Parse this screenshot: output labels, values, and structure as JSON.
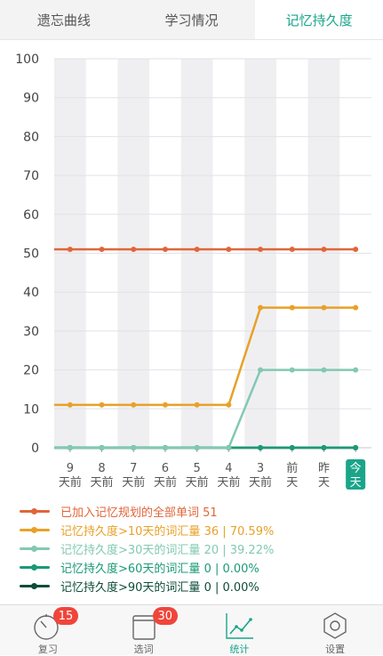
{
  "tabs": [
    {
      "label": "遗忘曲线",
      "active": false
    },
    {
      "label": "学习情况",
      "active": false
    },
    {
      "label": "记忆持久度",
      "active": true
    }
  ],
  "chart_data": {
    "type": "line",
    "ylim": [
      0,
      100
    ],
    "yticks": [
      0,
      10,
      20,
      30,
      40,
      50,
      60,
      70,
      80,
      90,
      100
    ],
    "categories": [
      {
        "line1": "9",
        "line2": "天前"
      },
      {
        "line1": "8",
        "line2": "天前"
      },
      {
        "line1": "7",
        "line2": "天前"
      },
      {
        "line1": "6",
        "line2": "天前"
      },
      {
        "line1": "5",
        "line2": "天前"
      },
      {
        "line1": "4",
        "line2": "天前"
      },
      {
        "line1": "3",
        "line2": "天前"
      },
      {
        "line1": "前",
        "line2": "天"
      },
      {
        "line1": "昨",
        "line2": "天"
      },
      {
        "line1": "今",
        "line2": "天",
        "highlight": true
      }
    ],
    "grid": true,
    "series": [
      {
        "name": "已加入记忆规划的全部单词 51",
        "color": "#e0663a",
        "values": [
          51,
          51,
          51,
          51,
          51,
          51,
          51,
          51,
          51,
          51
        ]
      },
      {
        "name": "记忆持久度>10天的词汇量 36 | 70.59%",
        "color": "#e8a128",
        "values": [
          11,
          11,
          11,
          11,
          11,
          11,
          36,
          36,
          36,
          36
        ]
      },
      {
        "name": "记忆持久度>30天的词汇量 20 | 39.22%",
        "color": "#82c9b2",
        "values": [
          0,
          0,
          0,
          0,
          0,
          0,
          20,
          20,
          20,
          20
        ]
      },
      {
        "name": "记忆持久度>60天的词汇量 0 | 0.00%",
        "color": "#1a9a76",
        "values": [
          0,
          0,
          0,
          0,
          0,
          0,
          0,
          0,
          0,
          0
        ]
      },
      {
        "name": "记忆持久度>90天的词汇量 0 | 0.00%",
        "color": "#0d4d3a",
        "values": [
          0,
          0,
          0,
          0,
          0,
          0,
          0,
          0,
          0,
          0
        ]
      }
    ]
  },
  "colors": {
    "accent": "#1aa58a",
    "badge": "#f0453a"
  },
  "nav": [
    {
      "label": "复习",
      "icon": "timer-icon",
      "badge": "15",
      "active": false
    },
    {
      "label": "选词",
      "icon": "book-icon",
      "badge": "30",
      "active": false
    },
    {
      "label": "统计",
      "icon": "chart-icon",
      "badge": null,
      "active": true
    },
    {
      "label": "设置",
      "icon": "gear-icon",
      "badge": null,
      "active": false
    }
  ]
}
